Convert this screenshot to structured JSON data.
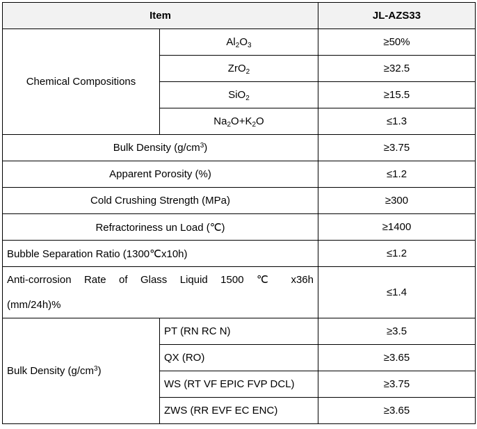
{
  "header": {
    "item": "Item",
    "grade": "JL-AZS33"
  },
  "chemical": {
    "label": "Chemical Compositions",
    "rows": [
      {
        "p1": "Al",
        "s1": "2",
        "p2": "O",
        "s2": "3",
        "p3": "",
        "s3": "",
        "p4": "",
        "value": "≥50%"
      },
      {
        "p1": "ZrO",
        "s1": "2",
        "p2": "",
        "s2": "",
        "p3": "",
        "s3": "",
        "p4": "",
        "value": "≥32.5"
      },
      {
        "p1": "SiO",
        "s1": "2",
        "p2": "",
        "s2": "",
        "p3": "",
        "s3": "",
        "p4": "",
        "value": "≥15.5"
      },
      {
        "p1": "Na",
        "s1": "2",
        "p2": "O+K",
        "s2": "2",
        "p3": "O",
        "s3": "",
        "p4": "",
        "value": "≤1.3"
      }
    ]
  },
  "bulk_density": {
    "prefix": "Bulk Density (g/cm",
    "sup": "3",
    "suffix": ")",
    "value": "≥3.75"
  },
  "porosity": {
    "label": "Apparent Porosity (%)",
    "value": "≤1.2"
  },
  "crushing": {
    "label": "Cold Crushing Strength (MPa)",
    "value": "≥300"
  },
  "refractoriness": {
    "label": "Refractoriness un Load (℃)",
    "value": "≥1400"
  },
  "bubble": {
    "label": "Bubble Separation Ratio (1300℃x10h)",
    "value": "≤1.2"
  },
  "anticorrosion": {
    "line1": "Anti-corrosion Rate of Glass Liquid 1500 ℃ x36h",
    "line2": "(mm/24h)%",
    "value": "≤1.4"
  },
  "bulk_by_type": {
    "prefix": "Bulk Density (g/cm",
    "sup": "3",
    "suffix": ")",
    "rows": [
      {
        "type": "PT (RN RC N)",
        "value": "≥3.5"
      },
      {
        "type": "QX (RO)",
        "value": "≥3.65"
      },
      {
        "type": "WS (RT VF EPIC FVP DCL)",
        "value": "≥3.75"
      },
      {
        "type": "ZWS (RR EVF EC ENC)",
        "value": "≥3.65"
      }
    ]
  }
}
